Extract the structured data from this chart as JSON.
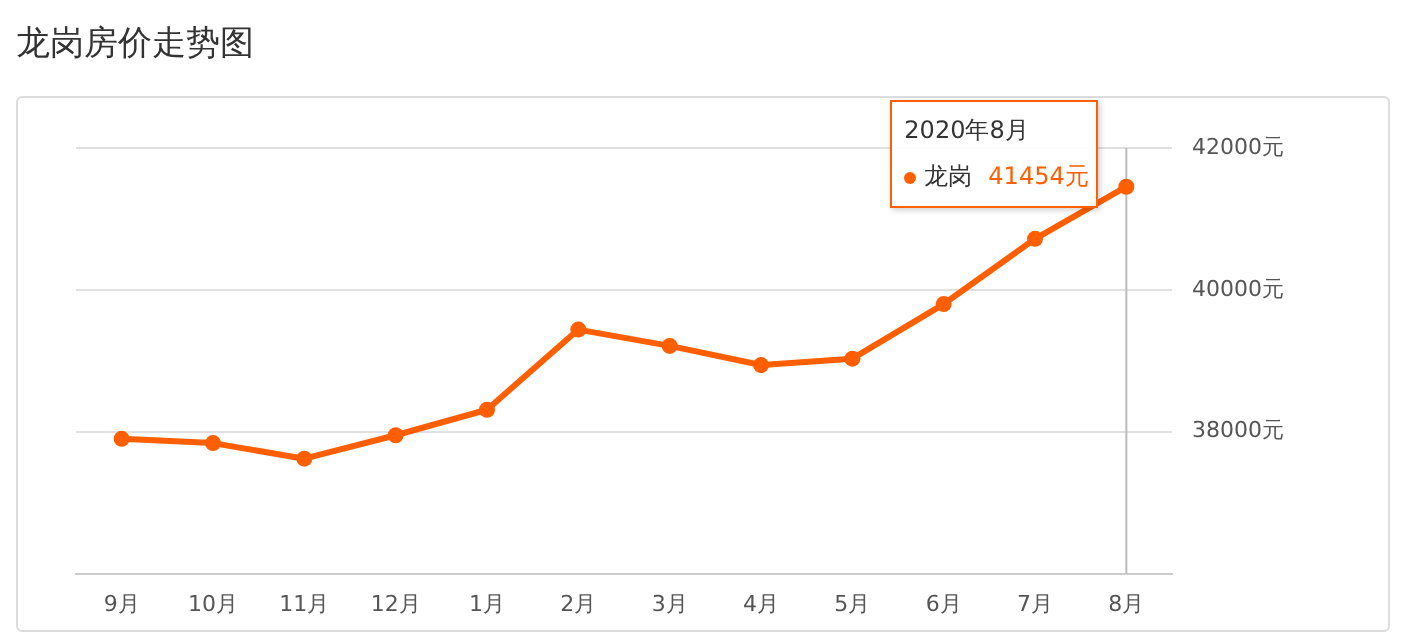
{
  "chart_data": {
    "type": "line",
    "title": "龙岗房价走势图",
    "categories": [
      "9月",
      "10月",
      "11月",
      "12月",
      "1月",
      "2月",
      "3月",
      "4月",
      "5月",
      "6月",
      "7月",
      "8月"
    ],
    "series": [
      {
        "name": "龙岗",
        "color": "#ff5f00",
        "values": [
          37900,
          37840,
          37620,
          37950,
          38310,
          39440,
          39210,
          38940,
          39030,
          39800,
          40720,
          41454
        ],
        "value_labels": [
          null,
          null,
          null,
          null,
          null,
          null,
          null,
          null,
          null,
          null,
          null,
          "41454元"
        ]
      }
    ],
    "ylim": [
      36000,
      42000
    ],
    "yticks": [
      {
        "value": 36000,
        "label": null
      },
      {
        "value": 38000,
        "label": "38000元"
      },
      {
        "value": 40000,
        "label": "40000元"
      },
      {
        "value": 42000,
        "label": "42000元"
      }
    ],
    "grid": "y",
    "legend": "top right",
    "marker": "circle",
    "line_style": "solid",
    "ref_lines": [
      {
        "axis": "x",
        "value": "8月",
        "color": "#bbbbbb"
      }
    ],
    "annotations": [
      "2020年8月"
    ]
  }
}
